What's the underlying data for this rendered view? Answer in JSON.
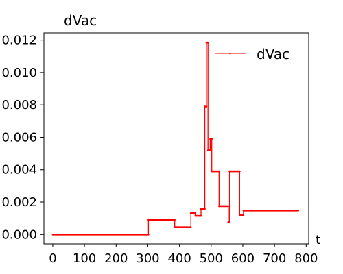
{
  "chart_data": {
    "type": "line",
    "title": "dVac",
    "xlabel": "t",
    "ylabel": "",
    "xlim": [
      -28,
      808
    ],
    "ylim": [
      -0.00058,
      0.01245
    ],
    "xticks": [
      0,
      100,
      200,
      300,
      400,
      500,
      600,
      700,
      800
    ],
    "yticks": [
      0.0,
      0.002,
      0.004,
      0.006,
      0.008,
      0.01,
      0.012
    ],
    "ytick_labels": [
      "0.000",
      "0.002",
      "0.004",
      "0.006",
      "0.008",
      "0.010",
      "0.012"
    ],
    "grid": false,
    "legend": {
      "position": "top-right"
    },
    "line_color": "#ff0000",
    "series": [
      {
        "name": "dVac",
        "x": [
          0,
          302,
          302,
          385,
          385,
          436,
          436,
          450,
          450,
          468,
          468,
          480,
          480,
          485,
          485,
          490,
          490,
          497,
          497,
          502,
          502,
          525,
          525,
          554,
          554,
          558,
          558,
          590,
          590,
          602,
          602,
          775
        ],
        "y": [
          0,
          0,
          0.0009,
          0.0009,
          0.00045,
          0.00045,
          0.00132,
          0.00132,
          0.00115,
          0.00115,
          0.00158,
          0.00158,
          0.0079,
          0.0079,
          0.01185,
          0.01185,
          0.0052,
          0.0052,
          0.0059,
          0.0059,
          0.0039,
          0.0039,
          0.00175,
          0.00175,
          0.00075,
          0.00075,
          0.0039,
          0.0039,
          0.00118,
          0.00118,
          0.00148,
          0.00148
        ]
      }
    ]
  }
}
